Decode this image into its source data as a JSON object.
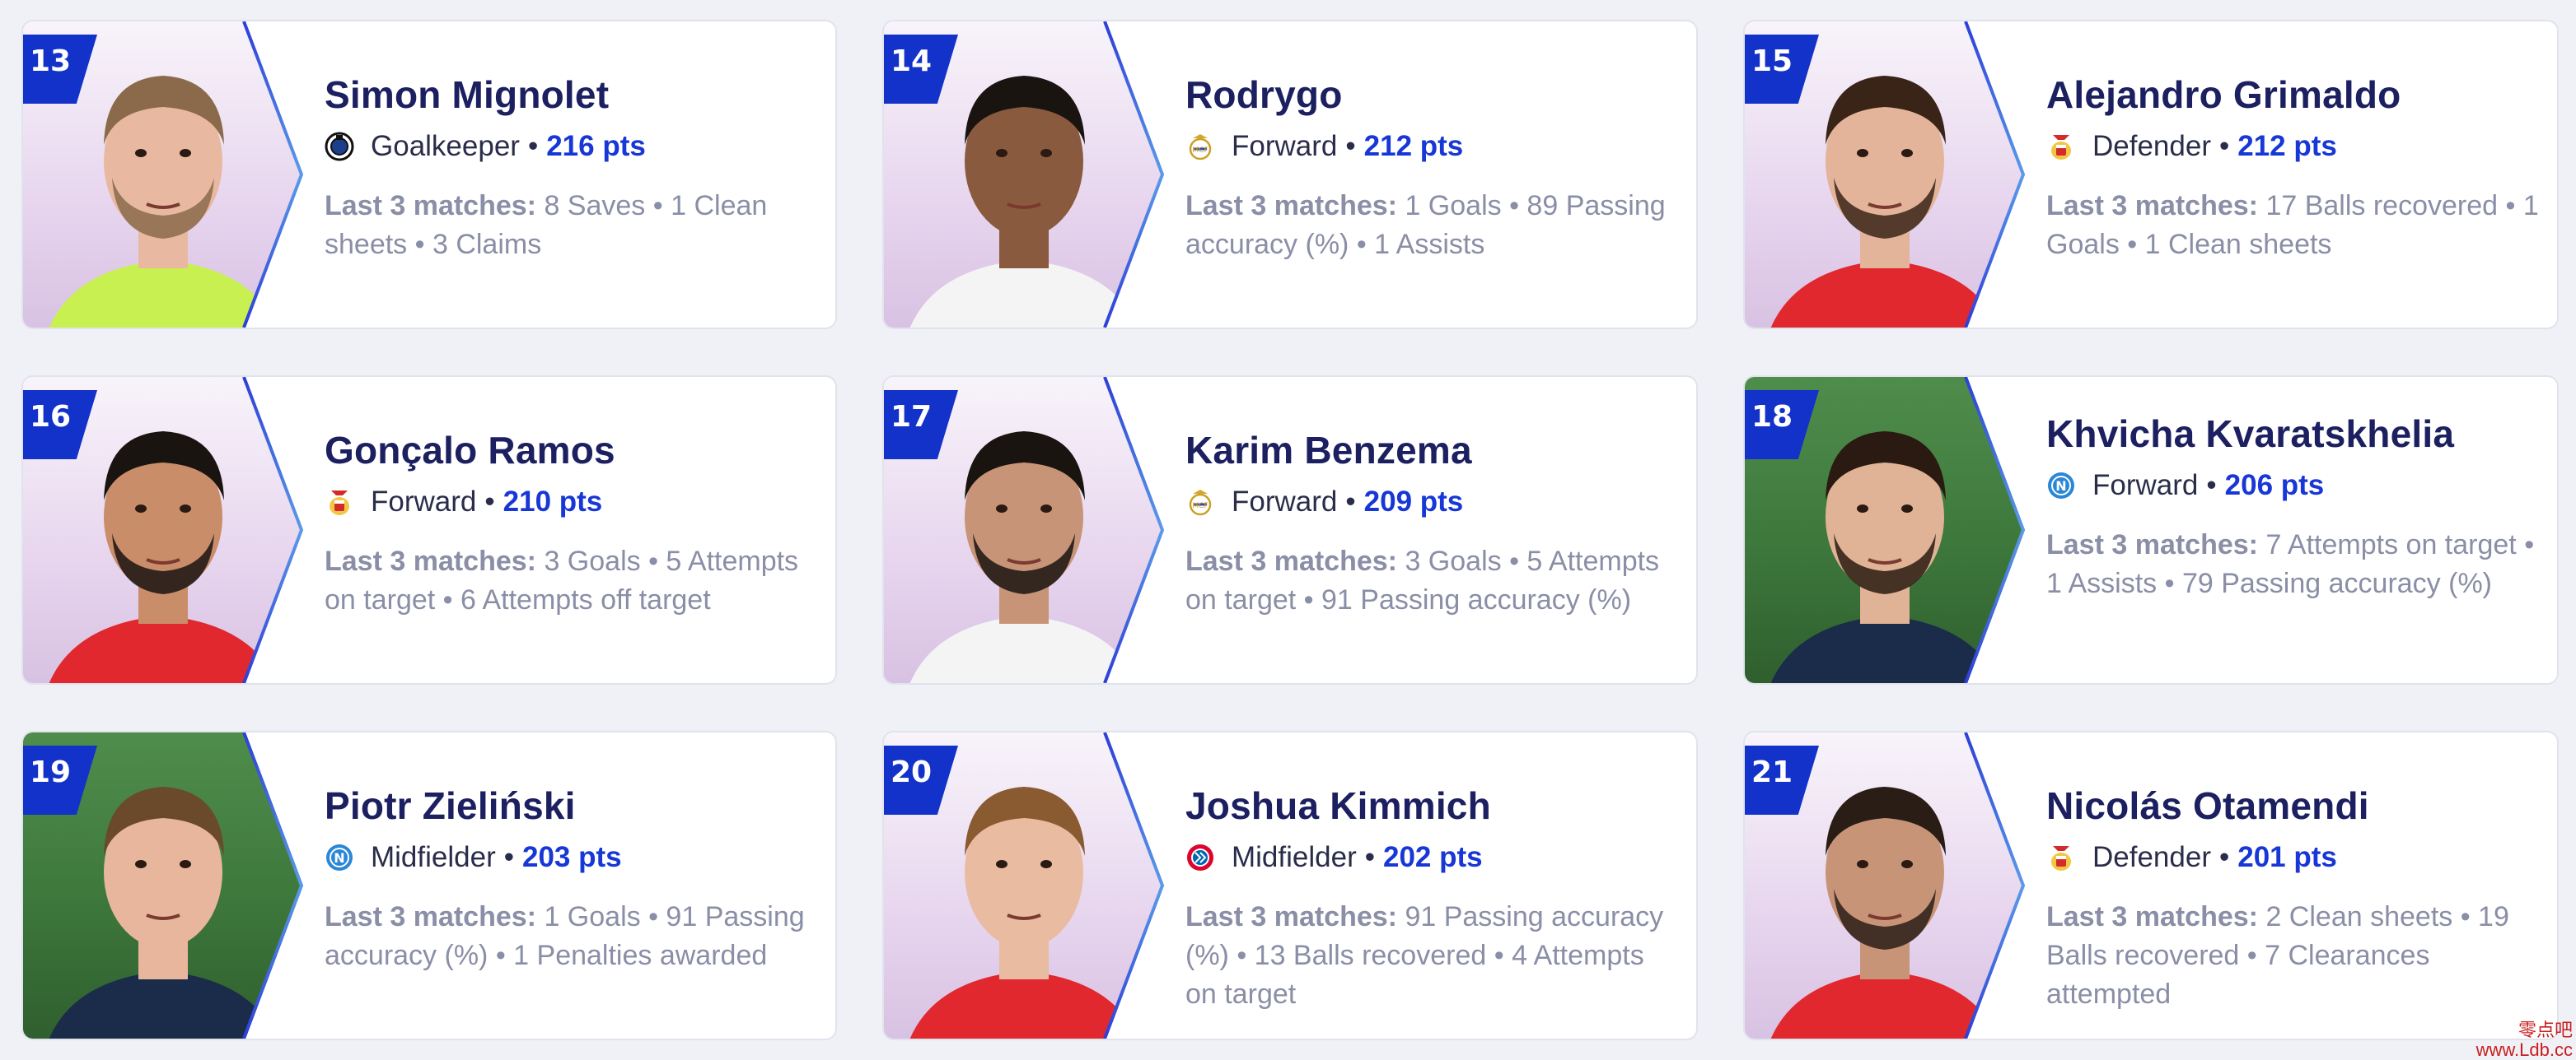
{
  "stats_label": "Last 3 matches:",
  "colors": {
    "accent": "#1737d6",
    "rank_badge": "#1232c9",
    "name": "#1c2060"
  },
  "players": [
    {
      "rank": "13",
      "name": "Simon Mignolet",
      "position": "Goalkeeper",
      "points": "216 pts",
      "club": "club-brugge-icon",
      "stats": "8 Saves • 1 Clean sheets • 3 Claims"
    },
    {
      "rank": "14",
      "name": "Rodrygo",
      "position": "Forward",
      "points": "212 pts",
      "club": "real-madrid-icon",
      "stats": "1 Goals • 89 Passing accuracy (%) • 1 Assists"
    },
    {
      "rank": "15",
      "name": "Alejandro Grimaldo",
      "position": "Defender",
      "points": "212 pts",
      "club": "benfica-icon",
      "stats": "17 Balls recovered • 1 Goals • 1 Clean sheets"
    },
    {
      "rank": "16",
      "name": "Gonçalo Ramos",
      "position": "Forward",
      "points": "210 pts",
      "club": "benfica-icon",
      "stats": "3 Goals • 5 Attempts on target • 6 Attempts off target"
    },
    {
      "rank": "17",
      "name": "Karim Benzema",
      "position": "Forward",
      "points": "209 pts",
      "club": "real-madrid-icon",
      "stats": "3 Goals • 5 Attempts on target • 91 Passing accuracy (%)"
    },
    {
      "rank": "18",
      "name": "Khvicha Kvaratskhelia",
      "position": "Forward",
      "points": "206 pts",
      "club": "napoli-icon",
      "stats": "7 Attempts on target • 1 Assists • 79 Passing accuracy (%)"
    },
    {
      "rank": "19",
      "name": "Piotr Zieliński",
      "position": "Midfielder",
      "points": "203 pts",
      "club": "napoli-icon",
      "stats": "1 Goals • 91 Passing accuracy (%) • 1 Penalties awarded"
    },
    {
      "rank": "20",
      "name": "Joshua Kimmich",
      "position": "Midfielder",
      "points": "202 pts",
      "club": "bayern-icon",
      "stats": "91 Passing accuracy (%) • 13 Balls recovered • 4 Attempts on target"
    },
    {
      "rank": "21",
      "name": "Nicolás Otamendi",
      "position": "Defender",
      "points": "201 pts",
      "club": "benfica-icon",
      "stats": "2 Clean sheets • 19 Balls recovered • 7 Clearances attempted"
    }
  ],
  "watermark": {
    "line1": "零点吧",
    "line2": "www.Ldb.cc"
  }
}
